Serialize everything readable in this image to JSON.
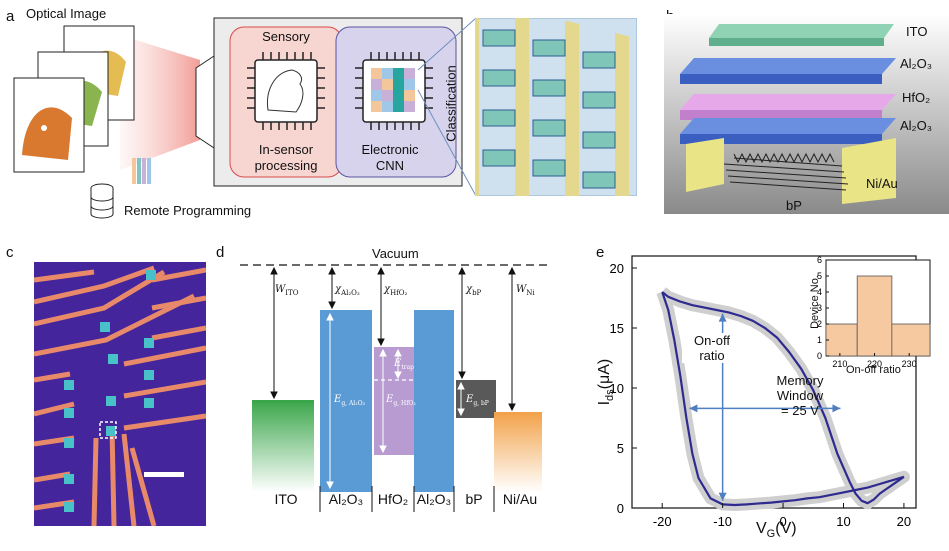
{
  "panels": {
    "a": {
      "label": "a",
      "optical_image": "Optical Image",
      "sensory": "Sensory",
      "in_sensor": "In-sensor",
      "processing": "processing",
      "electronic": "Electronic",
      "cnn": "CNN",
      "classification": "Classification",
      "remote_programming": "Remote Programming"
    },
    "b": {
      "label": "b",
      "layers": [
        "ITO",
        "Al₂O₃",
        "HfO₂",
        "Al₂O₃",
        "Ni/Au"
      ],
      "bp": "bP"
    },
    "c": {
      "label": "c"
    },
    "d": {
      "label": "d",
      "vacuum": "Vacuum",
      "materials": [
        "ITO",
        "Al₂O₃",
        "HfO₂",
        "Al₂O₃",
        "bP",
        "Ni/Au"
      ],
      "w_ito": "W",
      "w_ito_sub": "ITO",
      "chi_al2o3": "χ",
      "chi_al2o3_sub": "Al₂O₃",
      "chi_hfo2": "χ",
      "chi_hfo2_sub": "HfO₂",
      "chi_bp": "χ",
      "chi_bp_sub": "bP",
      "w_ni": "W",
      "w_ni_sub": "Ni",
      "eg_al2o3": "E",
      "eg_al2o3_sub": "g, Al₂O₃",
      "eg_hfo2": "E",
      "eg_hfo2_sub": "g, HfO₂",
      "e_trap": "E",
      "e_trap_sub": "trap",
      "eg_bp": "E",
      "eg_bp_sub": "g, bP",
      "colors": {
        "ito": "#3aa64a",
        "al2o3": "#5b9bd5",
        "hfo2": "#b79bd1",
        "bp": "#595959",
        "niau": "#f2a24a"
      }
    },
    "e": {
      "label": "e",
      "ylabel": "I",
      "ylabel_sub": "ds",
      "ylabel_unit": "(μA)",
      "xlabel": "V",
      "xlabel_sub": "G",
      "xlabel_unit": "(V)",
      "on_off_1": "On-off",
      "on_off_2": "ratio",
      "mem_1": "Memory",
      "mem_2": "Window",
      "mem_3": "= 25 V",
      "inset_ylabel": "Device No.",
      "inset_xlabel": "On-off ratio"
    }
  },
  "chart_data": [
    {
      "type": "line",
      "xlabel": "VG(V)",
      "ylabel": "Ids(μA)",
      "xlim": [
        -25,
        22
      ],
      "ylim": [
        0,
        21
      ],
      "xticks": [
        -20,
        -10,
        0,
        10,
        20
      ],
      "yticks": [
        0,
        5,
        10,
        15,
        20
      ],
      "series": [
        {
          "x": [
            -20,
            -19,
            -17,
            -15,
            -13,
            -11,
            -9,
            -7,
            -5,
            -3,
            -1,
            1,
            3,
            5,
            7,
            9,
            11,
            12,
            13,
            14,
            15,
            16,
            18,
            20
          ],
          "y": [
            18,
            17.6,
            17.2,
            16.9,
            16.7,
            16.5,
            16.3,
            16.0,
            15.6,
            15.0,
            14.2,
            13.0,
            11.6,
            9.8,
            7.5,
            4.5,
            2.2,
            1.2,
            0.6,
            0.4,
            0.7,
            1.2,
            1.9,
            2.6
          ]
        },
        {
          "x": [
            20,
            18,
            16,
            14,
            12,
            10,
            8,
            6,
            4,
            2,
            0,
            -2,
            -4,
            -6,
            -8,
            -10,
            -12,
            -14,
            -15,
            -16,
            -17,
            -18,
            -19,
            -20
          ],
          "y": [
            2.6,
            2.3,
            2.0,
            1.7,
            1.5,
            1.3,
            1.1,
            0.9,
            0.8,
            0.65,
            0.55,
            0.45,
            0.38,
            0.3,
            0.25,
            0.3,
            0.8,
            2.5,
            4.5,
            7.5,
            11.0,
            14.0,
            16.5,
            18.0
          ]
        }
      ]
    },
    {
      "type": "bar",
      "xlabel": "On-off ratio",
      "ylabel": "Device No.",
      "categories": [
        "210-215",
        "215-225",
        "225-235"
      ],
      "values": [
        2,
        5,
        2
      ],
      "xticks": [
        210,
        220,
        230
      ],
      "yticks": [
        0,
        1,
        2,
        3,
        4,
        5,
        6
      ],
      "ylim": [
        0,
        6
      ]
    }
  ]
}
